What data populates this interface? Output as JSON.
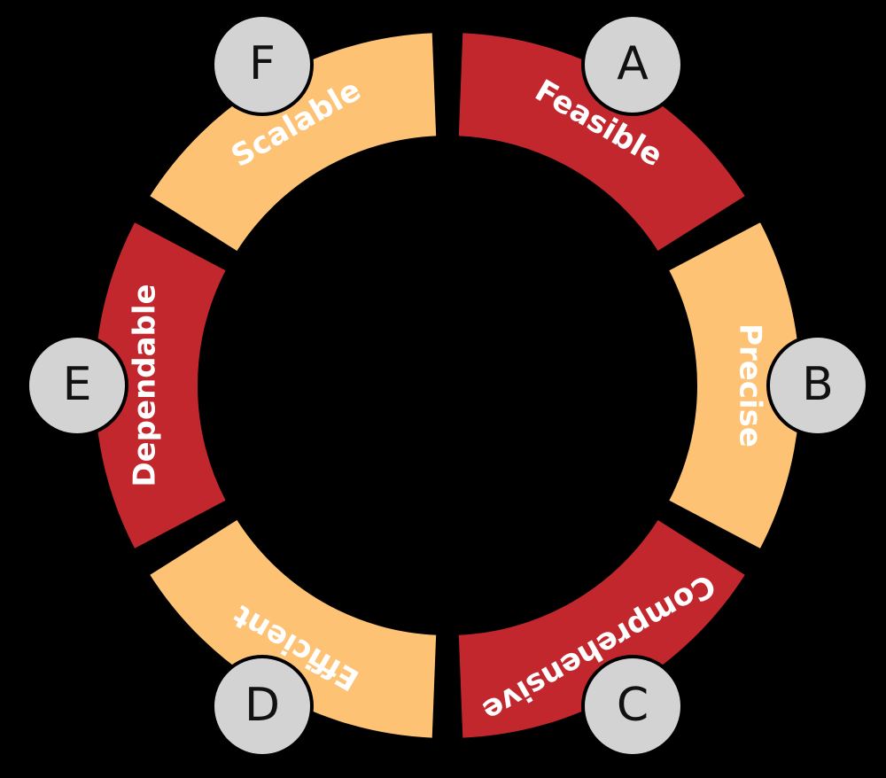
{
  "segments": [
    {
      "letter": "A",
      "label": "Feasible"
    },
    {
      "letter": "B",
      "label": "Precise"
    },
    {
      "letter": "C",
      "label": "Comprehensive"
    },
    {
      "letter": "D",
      "label": "Efficient"
    },
    {
      "letter": "E",
      "label": "Dependable"
    },
    {
      "letter": "F",
      "label": "Scalable"
    }
  ]
}
